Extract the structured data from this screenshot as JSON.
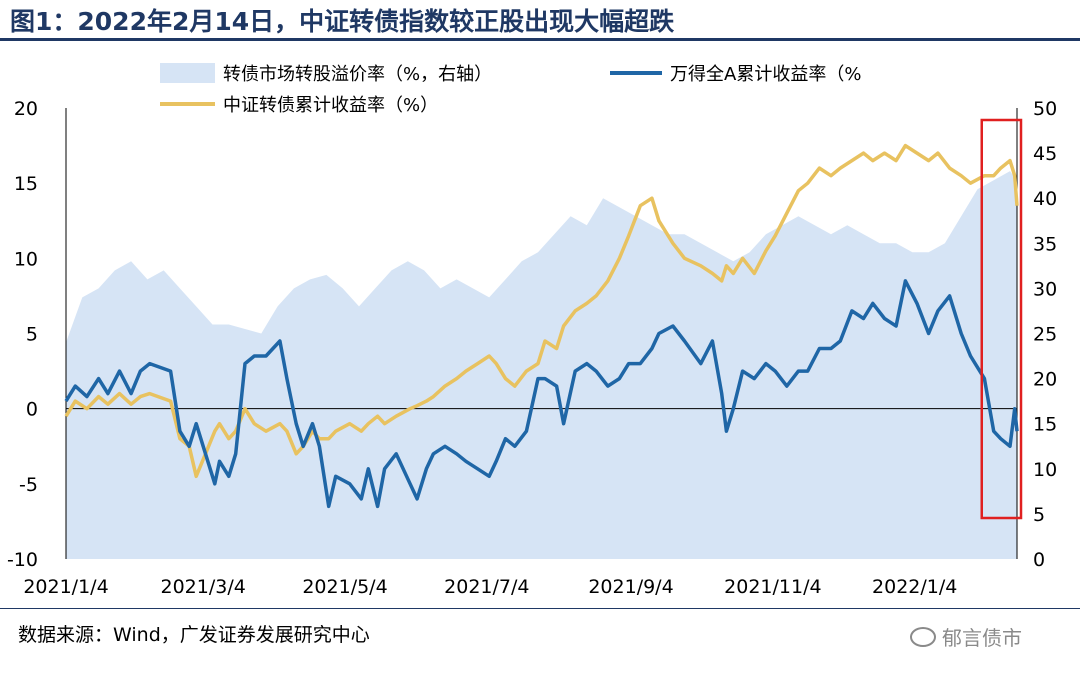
{
  "title": "图1：2022年2月14日，中证转债指数较正股出现大幅超跌",
  "source": "数据来源：Wind，广发证券发展研究中心",
  "watermark": "郁言债市",
  "colors": {
    "premium_area": "#d6e4f5",
    "a_share": "#1f66a6",
    "cb_index": "#e8c260",
    "highlight_box": "#e02020",
    "title": "#1f3864"
  },
  "chart_data": {
    "type": "line",
    "title": "",
    "xlabel": "",
    "ylabel": "",
    "x_ticks": [
      "2021/1/4",
      "2021/3/4",
      "2021/5/4",
      "2021/7/4",
      "2021/9/4",
      "2021/11/4",
      "2022/1/4"
    ],
    "left_axis": {
      "range": [
        -10,
        20
      ],
      "ticks": [
        -10,
        -5,
        0,
        5,
        10,
        15,
        20
      ]
    },
    "right_axis": {
      "range": [
        0,
        50
      ],
      "ticks": [
        0,
        5,
        10,
        15,
        20,
        25,
        30,
        35,
        40,
        45,
        50
      ]
    },
    "x_range": [
      "2021-01-04",
      "2022-02-17"
    ],
    "legend_placement": "top",
    "grid": false,
    "highlight_range": [
      "2022-02-07",
      "2022-02-17"
    ],
    "series": [
      {
        "name": "转债市场转股溢价率（%，右轴）",
        "type": "area",
        "axis": "right",
        "points": [
          [
            "2021-01-04",
            24
          ],
          [
            "2021-01-11",
            29
          ],
          [
            "2021-01-18",
            30
          ],
          [
            "2021-01-25",
            32
          ],
          [
            "2021-02-01",
            33
          ],
          [
            "2021-02-08",
            31
          ],
          [
            "2021-02-15",
            32
          ],
          [
            "2021-02-22",
            30
          ],
          [
            "2021-03-01",
            28
          ],
          [
            "2021-03-08",
            26
          ],
          [
            "2021-03-15",
            26
          ],
          [
            "2021-03-22",
            25.5
          ],
          [
            "2021-03-29",
            25
          ],
          [
            "2021-04-05",
            28
          ],
          [
            "2021-04-12",
            30
          ],
          [
            "2021-04-19",
            31
          ],
          [
            "2021-04-26",
            31.5
          ],
          [
            "2021-05-03",
            30
          ],
          [
            "2021-05-10",
            28
          ],
          [
            "2021-05-17",
            30
          ],
          [
            "2021-05-24",
            32
          ],
          [
            "2021-05-31",
            33
          ],
          [
            "2021-06-07",
            32
          ],
          [
            "2021-06-14",
            30
          ],
          [
            "2021-06-21",
            31
          ],
          [
            "2021-06-28",
            30
          ],
          [
            "2021-07-05",
            29
          ],
          [
            "2021-07-12",
            31
          ],
          [
            "2021-07-19",
            33
          ],
          [
            "2021-07-26",
            34
          ],
          [
            "2021-08-02",
            36
          ],
          [
            "2021-08-09",
            38
          ],
          [
            "2021-08-16",
            37
          ],
          [
            "2021-08-23",
            40
          ],
          [
            "2021-08-30",
            39
          ],
          [
            "2021-09-06",
            38
          ],
          [
            "2021-09-13",
            37
          ],
          [
            "2021-09-20",
            36
          ],
          [
            "2021-09-27",
            36
          ],
          [
            "2021-10-04",
            35
          ],
          [
            "2021-10-11",
            34
          ],
          [
            "2021-10-18",
            33
          ],
          [
            "2021-10-25",
            34
          ],
          [
            "2021-11-01",
            36
          ],
          [
            "2021-11-08",
            37
          ],
          [
            "2021-11-15",
            38
          ],
          [
            "2021-11-22",
            37
          ],
          [
            "2021-11-29",
            36
          ],
          [
            "2021-12-06",
            37
          ],
          [
            "2021-12-13",
            36
          ],
          [
            "2021-12-20",
            35
          ],
          [
            "2021-12-27",
            35
          ],
          [
            "2022-01-03",
            34
          ],
          [
            "2022-01-10",
            34
          ],
          [
            "2022-01-17",
            35
          ],
          [
            "2022-01-24",
            38
          ],
          [
            "2022-01-31",
            41
          ],
          [
            "2022-02-07",
            42
          ],
          [
            "2022-02-14",
            43
          ],
          [
            "2022-02-17",
            42
          ]
        ]
      },
      {
        "name": "万得全A累计收益率（%",
        "type": "line",
        "axis": "left",
        "points": [
          [
            "2021-01-04",
            0.5
          ],
          [
            "2021-01-08",
            1.5
          ],
          [
            "2021-01-13",
            0.8
          ],
          [
            "2021-01-18",
            2.0
          ],
          [
            "2021-01-22",
            1.0
          ],
          [
            "2021-01-27",
            2.5
          ],
          [
            "2021-02-01",
            1.0
          ],
          [
            "2021-02-05",
            2.5
          ],
          [
            "2021-02-09",
            3.0
          ],
          [
            "2021-02-18",
            2.5
          ],
          [
            "2021-02-22",
            -1.5
          ],
          [
            "2021-02-26",
            -2.5
          ],
          [
            "2021-03-01",
            -1.0
          ],
          [
            "2021-03-05",
            -3.0
          ],
          [
            "2021-03-09",
            -5.0
          ],
          [
            "2021-03-11",
            -3.5
          ],
          [
            "2021-03-15",
            -4.5
          ],
          [
            "2021-03-18",
            -3.0
          ],
          [
            "2021-03-22",
            3.0
          ],
          [
            "2021-03-26",
            3.5
          ],
          [
            "2021-03-31",
            3.5
          ],
          [
            "2021-04-06",
            4.5
          ],
          [
            "2021-04-09",
            2.0
          ],
          [
            "2021-04-13",
            -1.0
          ],
          [
            "2021-04-16",
            -2.5
          ],
          [
            "2021-04-20",
            -1.0
          ],
          [
            "2021-04-23",
            -2.5
          ],
          [
            "2021-04-27",
            -6.5
          ],
          [
            "2021-04-30",
            -4.5
          ],
          [
            "2021-05-06",
            -5.0
          ],
          [
            "2021-05-11",
            -6.0
          ],
          [
            "2021-05-14",
            -4.0
          ],
          [
            "2021-05-18",
            -6.5
          ],
          [
            "2021-05-21",
            -4.0
          ],
          [
            "2021-05-26",
            -3.0
          ],
          [
            "2021-06-01",
            -5.0
          ],
          [
            "2021-06-04",
            -6.0
          ],
          [
            "2021-06-08",
            -4.0
          ],
          [
            "2021-06-11",
            -3.0
          ],
          [
            "2021-06-16",
            -2.5
          ],
          [
            "2021-06-21",
            -3.0
          ],
          [
            "2021-06-25",
            -3.5
          ],
          [
            "2021-06-30",
            -4.0
          ],
          [
            "2021-07-05",
            -4.5
          ],
          [
            "2021-07-08",
            -3.5
          ],
          [
            "2021-07-12",
            -2.0
          ],
          [
            "2021-07-16",
            -2.5
          ],
          [
            "2021-07-21",
            -1.5
          ],
          [
            "2021-07-26",
            2.0
          ],
          [
            "2021-07-29",
            2.0
          ],
          [
            "2021-08-03",
            1.5
          ],
          [
            "2021-08-06",
            -1.0
          ],
          [
            "2021-08-11",
            2.5
          ],
          [
            "2021-08-16",
            3.0
          ],
          [
            "2021-08-20",
            2.5
          ],
          [
            "2021-08-25",
            1.5
          ],
          [
            "2021-08-30",
            2.0
          ],
          [
            "2021-09-03",
            3.0
          ],
          [
            "2021-09-08",
            3.0
          ],
          [
            "2021-09-13",
            4.0
          ],
          [
            "2021-09-16",
            5.0
          ],
          [
            "2021-09-22",
            5.5
          ],
          [
            "2021-09-27",
            4.5
          ],
          [
            "2021-10-04",
            3.0
          ],
          [
            "2021-10-09",
            4.5
          ],
          [
            "2021-10-13",
            1.0
          ],
          [
            "2021-10-15",
            -1.5
          ],
          [
            "2021-10-18",
            0.0
          ],
          [
            "2021-10-22",
            2.5
          ],
          [
            "2021-10-27",
            2.0
          ],
          [
            "2021-11-01",
            3.0
          ],
          [
            "2021-11-05",
            2.5
          ],
          [
            "2021-11-10",
            1.5
          ],
          [
            "2021-11-15",
            2.5
          ],
          [
            "2021-11-19",
            2.5
          ],
          [
            "2021-11-24",
            4.0
          ],
          [
            "2021-11-29",
            4.0
          ],
          [
            "2021-12-03",
            4.5
          ],
          [
            "2021-12-08",
            6.5
          ],
          [
            "2021-12-13",
            6.0
          ],
          [
            "2021-12-17",
            7.0
          ],
          [
            "2021-12-22",
            6.0
          ],
          [
            "2021-12-27",
            5.5
          ],
          [
            "2021-12-31",
            8.5
          ],
          [
            "2022-01-05",
            7.0
          ],
          [
            "2022-01-10",
            5.0
          ],
          [
            "2022-01-14",
            6.5
          ],
          [
            "2022-01-19",
            7.5
          ],
          [
            "2022-01-24",
            5.0
          ],
          [
            "2022-01-28",
            3.5
          ],
          [
            "2022-02-03",
            2.0
          ],
          [
            "2022-02-07",
            -1.5
          ],
          [
            "2022-02-10",
            -2.0
          ],
          [
            "2022-02-14",
            -2.5
          ],
          [
            "2022-02-16",
            0.0
          ],
          [
            "2022-02-17",
            -1.5
          ]
        ]
      },
      {
        "name": "中证转债累计收益率（%）",
        "type": "line",
        "axis": "left",
        "points": [
          [
            "2021-01-04",
            -0.5
          ],
          [
            "2021-01-08",
            0.5
          ],
          [
            "2021-01-13",
            0.0
          ],
          [
            "2021-01-18",
            0.8
          ],
          [
            "2021-01-22",
            0.3
          ],
          [
            "2021-01-27",
            1.0
          ],
          [
            "2021-02-01",
            0.3
          ],
          [
            "2021-02-05",
            0.8
          ],
          [
            "2021-02-09",
            1.0
          ],
          [
            "2021-02-18",
            0.5
          ],
          [
            "2021-02-22",
            -2.0
          ],
          [
            "2021-02-26",
            -2.5
          ],
          [
            "2021-03-01",
            -4.5
          ],
          [
            "2021-03-05",
            -3.0
          ],
          [
            "2021-03-09",
            -1.5
          ],
          [
            "2021-03-11",
            -1.0
          ],
          [
            "2021-03-15",
            -2.0
          ],
          [
            "2021-03-18",
            -1.5
          ],
          [
            "2021-03-22",
            0.0
          ],
          [
            "2021-03-26",
            -1.0
          ],
          [
            "2021-03-31",
            -1.5
          ],
          [
            "2021-04-06",
            -1.0
          ],
          [
            "2021-04-09",
            -1.5
          ],
          [
            "2021-04-13",
            -3.0
          ],
          [
            "2021-04-16",
            -2.5
          ],
          [
            "2021-04-20",
            -1.5
          ],
          [
            "2021-04-23",
            -2.0
          ],
          [
            "2021-04-27",
            -2.0
          ],
          [
            "2021-04-30",
            -1.5
          ],
          [
            "2021-05-06",
            -1.0
          ],
          [
            "2021-05-11",
            -1.5
          ],
          [
            "2021-05-14",
            -1.0
          ],
          [
            "2021-05-18",
            -0.5
          ],
          [
            "2021-05-21",
            -1.0
          ],
          [
            "2021-05-26",
            -0.5
          ],
          [
            "2021-06-01",
            0.0
          ],
          [
            "2021-06-04",
            0.2
          ],
          [
            "2021-06-08",
            0.5
          ],
          [
            "2021-06-11",
            0.8
          ],
          [
            "2021-06-16",
            1.5
          ],
          [
            "2021-06-21",
            2.0
          ],
          [
            "2021-06-25",
            2.5
          ],
          [
            "2021-06-30",
            3.0
          ],
          [
            "2021-07-05",
            3.5
          ],
          [
            "2021-07-08",
            3.0
          ],
          [
            "2021-07-12",
            2.0
          ],
          [
            "2021-07-16",
            1.5
          ],
          [
            "2021-07-21",
            2.5
          ],
          [
            "2021-07-26",
            3.0
          ],
          [
            "2021-07-29",
            4.5
          ],
          [
            "2021-08-03",
            4.0
          ],
          [
            "2021-08-06",
            5.5
          ],
          [
            "2021-08-11",
            6.5
          ],
          [
            "2021-08-16",
            7.0
          ],
          [
            "2021-08-20",
            7.5
          ],
          [
            "2021-08-25",
            8.5
          ],
          [
            "2021-08-30",
            10.0
          ],
          [
            "2021-09-03",
            11.5
          ],
          [
            "2021-09-08",
            13.5
          ],
          [
            "2021-09-13",
            14.0
          ],
          [
            "2021-09-16",
            12.5
          ],
          [
            "2021-09-22",
            11.0
          ],
          [
            "2021-09-27",
            10.0
          ],
          [
            "2021-10-04",
            9.5
          ],
          [
            "2021-10-09",
            9.0
          ],
          [
            "2021-10-13",
            8.5
          ],
          [
            "2021-10-15",
            9.5
          ],
          [
            "2021-10-18",
            9.0
          ],
          [
            "2021-10-22",
            10.0
          ],
          [
            "2021-10-27",
            9.0
          ],
          [
            "2021-11-01",
            10.5
          ],
          [
            "2021-11-05",
            11.5
          ],
          [
            "2021-11-10",
            13.0
          ],
          [
            "2021-11-15",
            14.5
          ],
          [
            "2021-11-19",
            15.0
          ],
          [
            "2021-11-24",
            16.0
          ],
          [
            "2021-11-29",
            15.5
          ],
          [
            "2021-12-03",
            16.0
          ],
          [
            "2021-12-08",
            16.5
          ],
          [
            "2021-12-13",
            17.0
          ],
          [
            "2021-12-17",
            16.5
          ],
          [
            "2021-12-22",
            17.0
          ],
          [
            "2021-12-27",
            16.5
          ],
          [
            "2021-12-31",
            17.5
          ],
          [
            "2022-01-05",
            17.0
          ],
          [
            "2022-01-10",
            16.5
          ],
          [
            "2022-01-14",
            17.0
          ],
          [
            "2022-01-19",
            16.0
          ],
          [
            "2022-01-24",
            15.5
          ],
          [
            "2022-01-28",
            15.0
          ],
          [
            "2022-02-03",
            15.5
          ],
          [
            "2022-02-07",
            15.5
          ],
          [
            "2022-02-10",
            16.0
          ],
          [
            "2022-02-14",
            16.5
          ],
          [
            "2022-02-16",
            15.5
          ],
          [
            "2022-02-17",
            13.5
          ]
        ]
      }
    ]
  }
}
